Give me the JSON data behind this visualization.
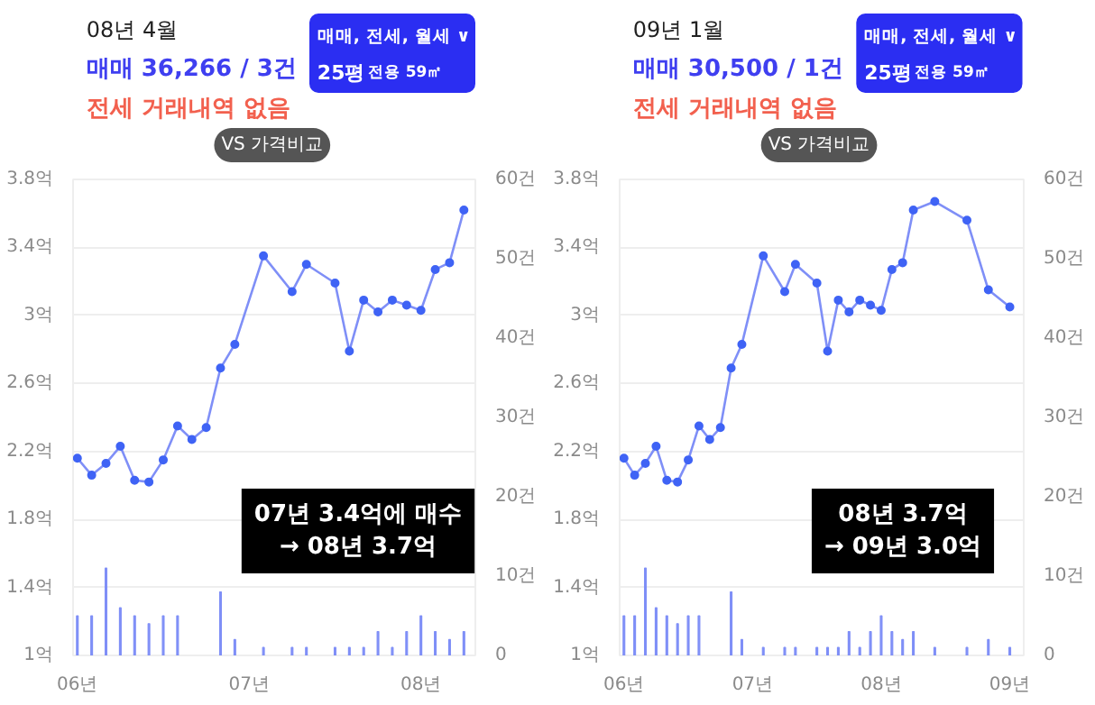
{
  "chart_data": [
    {
      "type": "line",
      "title": "08년 4월",
      "annotations": [
        "매매 36,266 / 3건",
        "전세 거래내역 없음",
        "매매, 전세, 월세 ∨",
        "25평",
        "전용 59㎡",
        "VS 가격비교",
        "07년 3.4억에 매수\n→ 08년 3.7억"
      ],
      "series": [
        {
          "color": "#7f8ff7",
          "x": [
            "2006-01",
            "2006-02",
            "2006-03",
            "2006-04",
            "2006-05",
            "2006-06",
            "2006-07",
            "2006-08",
            "2006-09",
            "2006-10",
            "2006-11",
            "2006-12",
            "2007-02",
            "2007-04",
            "2007-05",
            "2007-07",
            "2007-08",
            "2007-09",
            "2007-10",
            "2007-11",
            "2007-12",
            "2008-01",
            "2008-02",
            "2008-03",
            "2008-04"
          ],
          "values": [
            2.16,
            2.06,
            2.13,
            2.23,
            2.03,
            2.02,
            2.15,
            2.35,
            2.27,
            2.34,
            2.69,
            2.83,
            3.35,
            3.14,
            3.3,
            3.19,
            2.79,
            3.09,
            3.02,
            3.09,
            3.06,
            3.03,
            3.27,
            3.31,
            3.62
          ]
        },
        {
          "type": "bar",
          "axis": "y2",
          "color": "#7f8ff7",
          "x": [
            "2006-01",
            "2006-02",
            "2006-03",
            "2006-04",
            "2006-05",
            "2006-06",
            "2006-07",
            "2006-08",
            "2006-09",
            "2006-10",
            "2006-11",
            "2006-12",
            "2007-02",
            "2007-04",
            "2007-05",
            "2007-07",
            "2007-08",
            "2007-09",
            "2007-10",
            "2007-11",
            "2007-12",
            "2008-01",
            "2008-02",
            "2008-03",
            "2008-04"
          ],
          "values": [
            5,
            5,
            11,
            6,
            5,
            4,
            5,
            5,
            null,
            null,
            8,
            2,
            1,
            1,
            1,
            1,
            1,
            1,
            3,
            1,
            3,
            5,
            3,
            2,
            3
          ]
        }
      ],
      "xlim": [
        "2005-12-22",
        "2008-04-25"
      ],
      "xticks": [
        {
          "value": "2006-01",
          "label": "06년"
        },
        {
          "value": "2007-01",
          "label": "07년"
        },
        {
          "value": "2008-01",
          "label": "08년"
        }
      ],
      "ylim": [
        1,
        3.8
      ],
      "yticks": [
        {
          "value": 1,
          "label": "1억"
        },
        {
          "value": 1.4,
          "label": "1.4억"
        },
        {
          "value": 1.8,
          "label": "1.8억"
        },
        {
          "value": 2.2,
          "label": "2.2억"
        },
        {
          "value": 2.6,
          "label": "2.6억"
        },
        {
          "value": 3,
          "label": "3억"
        },
        {
          "value": 3.4,
          "label": "3.4억"
        },
        {
          "value": 3.8,
          "label": "3.8억"
        }
      ],
      "y2lim": [
        0,
        60
      ],
      "y2ticks": [
        0,
        {
          "value": 10,
          "label": "10건"
        },
        {
          "value": 20,
          "label": "20건"
        },
        {
          "value": 30,
          "label": "30건"
        },
        {
          "value": 40,
          "label": "40건"
        },
        {
          "value": 50,
          "label": "50건"
        },
        {
          "value": 60,
          "label": "60건"
        }
      ],
      "grid": "y",
      "marker": "circle"
    },
    {
      "type": "line",
      "title": "09년 1월",
      "annotations": [
        "매매 30,500 / 1건",
        "전세 거래내역 없음",
        "매매, 전세, 월세 ∨",
        "25평",
        "전용 59㎡",
        "VS 가격비교",
        "08년 3.7억\n→ 09년 3.0억"
      ],
      "series": [
        {
          "color": "#7f8ff7",
          "x": [
            "2006-01",
            "2006-02",
            "2006-03",
            "2006-04",
            "2006-05",
            "2006-06",
            "2006-07",
            "2006-08",
            "2006-09",
            "2006-10",
            "2006-11",
            "2006-12",
            "2007-02",
            "2007-04",
            "2007-05",
            "2007-07",
            "2007-08",
            "2007-09",
            "2007-10",
            "2007-11",
            "2007-12",
            "2008-01",
            "2008-02",
            "2008-03",
            "2008-04",
            "2008-06",
            "2008-09",
            "2008-11",
            "2009-01"
          ],
          "values": [
            2.16,
            2.06,
            2.13,
            2.23,
            2.03,
            2.02,
            2.15,
            2.35,
            2.27,
            2.34,
            2.69,
            2.83,
            3.35,
            3.14,
            3.3,
            3.19,
            2.79,
            3.09,
            3.02,
            3.09,
            3.06,
            3.03,
            3.27,
            3.31,
            3.62,
            3.67,
            3.56,
            3.15,
            3.05
          ]
        },
        {
          "type": "bar",
          "axis": "y2",
          "color": "#7f8ff7",
          "x": [
            "2006-01",
            "2006-02",
            "2006-03",
            "2006-04",
            "2006-05",
            "2006-06",
            "2006-07",
            "2006-08",
            "2006-09",
            "2006-10",
            "2006-11",
            "2006-12",
            "2007-02",
            "2007-04",
            "2007-05",
            "2007-07",
            "2007-08",
            "2007-09",
            "2007-10",
            "2007-11",
            "2007-12",
            "2008-01",
            "2008-02",
            "2008-03",
            "2008-04",
            "2008-06",
            "2008-09",
            "2008-11",
            "2009-01"
          ],
          "values": [
            5,
            5,
            11,
            6,
            5,
            4,
            5,
            5,
            null,
            null,
            8,
            2,
            1,
            1,
            1,
            1,
            1,
            1,
            3,
            1,
            3,
            5,
            3,
            2,
            3,
            1,
            1,
            2,
            1
          ]
        }
      ],
      "xlim": [
        "2005-12-19",
        "2009-02-10"
      ],
      "xticks": [
        {
          "value": "2006-01",
          "label": "06년"
        },
        {
          "value": "2007-01",
          "label": "07년"
        },
        {
          "value": "2008-01",
          "label": "08년"
        },
        {
          "value": "2009-01",
          "label": "09년"
        }
      ],
      "ylim": [
        1,
        3.8
      ],
      "yticks": [
        {
          "value": 1,
          "label": "1억"
        },
        {
          "value": 1.4,
          "label": "1.4억"
        },
        {
          "value": 1.8,
          "label": "1.8억"
        },
        {
          "value": 2.2,
          "label": "2.2억"
        },
        {
          "value": 2.6,
          "label": "2.6억"
        },
        {
          "value": 3,
          "label": "3억"
        },
        {
          "value": 3.4,
          "label": "3.4억"
        },
        {
          "value": 3.8,
          "label": "3.8억"
        }
      ],
      "y2lim": [
        0,
        60
      ],
      "y2ticks": [
        0,
        {
          "value": 10,
          "label": "10건"
        },
        {
          "value": 20,
          "label": "20건"
        },
        {
          "value": 30,
          "label": "30건"
        },
        {
          "value": 40,
          "label": "40건"
        },
        {
          "value": 50,
          "label": "50건"
        },
        {
          "value": 60,
          "label": "60건"
        }
      ],
      "grid": "y",
      "marker": "circle"
    }
  ]
}
